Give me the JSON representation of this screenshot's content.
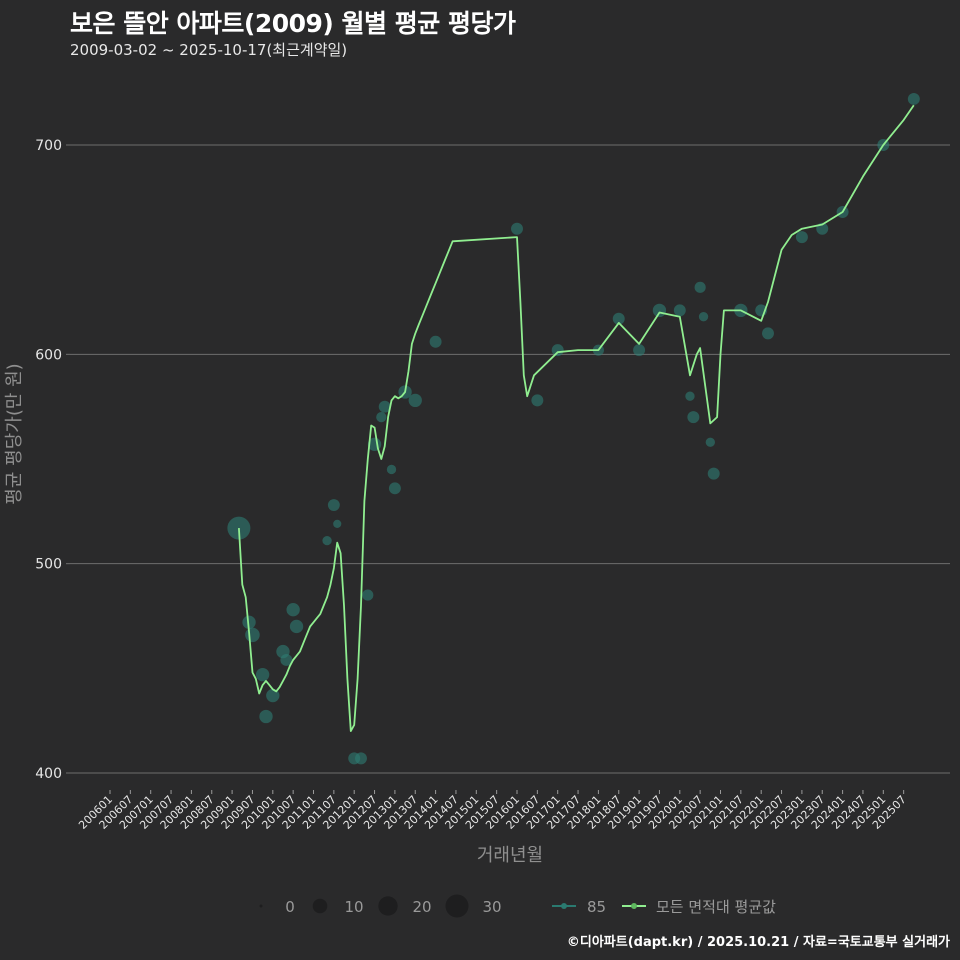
{
  "header": {
    "title": "보은 뜰안 아파트(2009) 월별 평균 평당가",
    "subtitle": "2009-03-02 ~ 2025-10-17(최근계약일)"
  },
  "caption": "©디아파트(dapt.kr) / 2025.10.21 / 자료=국토교통부 실거래가",
  "colors": {
    "background": "#2a2a2b",
    "gridline": "#6e6e6e",
    "avg_line": "#90ee90",
    "series_85": "#2a7a70",
    "points": "#2f7d73"
  },
  "chart_data": {
    "type": "line",
    "title": "보은 뜰안 아파트(2009) 월별 평균 평당가",
    "subtitle": "2009-03-02 ~ 2025-10-17(최근계약일)",
    "xlabel": "거래년월",
    "ylabel": "평균 평당가(만 원)",
    "ylim": [
      370,
      735
    ],
    "yticks": [
      400,
      500,
      600,
      700
    ],
    "grid": {
      "y_major": true,
      "x": false
    },
    "x_tick_labels": [
      "200601",
      "200607",
      "200701",
      "200707",
      "200801",
      "200807",
      "200901",
      "200907",
      "201001",
      "201007",
      "201101",
      "201107",
      "201201",
      "201207",
      "201301",
      "201307",
      "201401",
      "201407",
      "201501",
      "201507",
      "201601",
      "201607",
      "201701",
      "201707",
      "201801",
      "201807",
      "201901",
      "201907",
      "202001",
      "202007",
      "202101",
      "202107",
      "202201",
      "202207",
      "202301",
      "202307",
      "202401",
      "202407",
      "202501",
      "202507"
    ],
    "legend": {
      "position": "bottom",
      "size_title": "",
      "size_entries": [
        0,
        10,
        20,
        30
      ],
      "line_entries": [
        "85",
        "모든 면적대 평균값"
      ]
    },
    "series": [
      {
        "name": "모든 면적대 평균값",
        "type": "line",
        "x": [
          "200903",
          "200904",
          "200905",
          "200906",
          "200907",
          "200908",
          "200909",
          "200910",
          "200911",
          "200912",
          "201001",
          "201002",
          "201003",
          "201004",
          "201005",
          "201006",
          "201007",
          "201008",
          "201009",
          "201010",
          "201011",
          "201012",
          "201101",
          "201102",
          "201103",
          "201104",
          "201105",
          "201106",
          "201107",
          "201108",
          "201109",
          "201110",
          "201111",
          "201112",
          "201201",
          "201202",
          "201203",
          "201204",
          "201205",
          "201206",
          "201207",
          "201208",
          "201209",
          "201210",
          "201211",
          "201212",
          "201301",
          "201302",
          "201303",
          "201304",
          "201305",
          "201306",
          "201307",
          "201308",
          "201309",
          "201310",
          "201311",
          "201312",
          "201401",
          "201402",
          "201403",
          "201404",
          "201405",
          "201406",
          "201601",
          "201602",
          "201603",
          "201604",
          "201605",
          "201606",
          "201701",
          "201707",
          "201801",
          "201807",
          "201901",
          "201907",
          "202001",
          "202004",
          "202006",
          "202007",
          "202010",
          "202012",
          "202101",
          "202102",
          "202104",
          "202107",
          "202201",
          "202203",
          "202207",
          "202210",
          "202301",
          "202307",
          "202401",
          "202407",
          "202501",
          "202507",
          "202510"
        ],
        "values": [
          517,
          490,
          484,
          467,
          448,
          445,
          438,
          442,
          444,
          442,
          440,
          439,
          441,
          444,
          447,
          451,
          454,
          456,
          458,
          462,
          466,
          470,
          472,
          474,
          476,
          480,
          484,
          490,
          498,
          510,
          505,
          480,
          445,
          420,
          423,
          445,
          480,
          530,
          550,
          566,
          565,
          555,
          550,
          556,
          570,
          578,
          580,
          579,
          580,
          582,
          592,
          605,
          610,
          614,
          618,
          622,
          626,
          630,
          634,
          638,
          642,
          646,
          650,
          654,
          656,
          625,
          590,
          580,
          585,
          590,
          601,
          602,
          602,
          615,
          605,
          620,
          618,
          590,
          600,
          603,
          567,
          570,
          600,
          621,
          621,
          621,
          616,
          625,
          650,
          657,
          660,
          662,
          668,
          685,
          700,
          712,
          719
        ]
      },
      {
        "name": "85",
        "type": "scatter",
        "note": "point size = transaction count (0-30)",
        "points": [
          {
            "x": "200903",
            "y": 517,
            "n": 30
          },
          {
            "x": "200906",
            "y": 472,
            "n": 8
          },
          {
            "x": "200907",
            "y": 466,
            "n": 10
          },
          {
            "x": "200910",
            "y": 447,
            "n": 8
          },
          {
            "x": "200911",
            "y": 427,
            "n": 8
          },
          {
            "x": "201001",
            "y": 437,
            "n": 8
          },
          {
            "x": "201004",
            "y": 458,
            "n": 8
          },
          {
            "x": "201005",
            "y": 454,
            "n": 6
          },
          {
            "x": "201007",
            "y": 478,
            "n": 8
          },
          {
            "x": "201008",
            "y": 470,
            "n": 8
          },
          {
            "x": "201105",
            "y": 511,
            "n": 3
          },
          {
            "x": "201107",
            "y": 528,
            "n": 6
          },
          {
            "x": "201108",
            "y": 519,
            "n": 2
          },
          {
            "x": "201201",
            "y": 407,
            "n": 6
          },
          {
            "x": "201203",
            "y": 407,
            "n": 6
          },
          {
            "x": "201205",
            "y": 485,
            "n": 5
          },
          {
            "x": "201207",
            "y": 557,
            "n": 8
          },
          {
            "x": "201209",
            "y": 570,
            "n": 4
          },
          {
            "x": "201210",
            "y": 575,
            "n": 6
          },
          {
            "x": "201212",
            "y": 545,
            "n": 3
          },
          {
            "x": "201301",
            "y": 536,
            "n": 6
          },
          {
            "x": "201304",
            "y": 582,
            "n": 8
          },
          {
            "x": "201307",
            "y": 578,
            "n": 8
          },
          {
            "x": "201401",
            "y": 606,
            "n": 6
          },
          {
            "x": "201601",
            "y": 660,
            "n": 6
          },
          {
            "x": "201607",
            "y": 578,
            "n": 6
          },
          {
            "x": "201701",
            "y": 602,
            "n": 6
          },
          {
            "x": "201801",
            "y": 602,
            "n": 5
          },
          {
            "x": "201807",
            "y": 617,
            "n": 6
          },
          {
            "x": "201901",
            "y": 602,
            "n": 6
          },
          {
            "x": "201907",
            "y": 621,
            "n": 8
          },
          {
            "x": "202001",
            "y": 621,
            "n": 6
          },
          {
            "x": "202004",
            "y": 580,
            "n": 3
          },
          {
            "x": "202005",
            "y": 570,
            "n": 6
          },
          {
            "x": "202007",
            "y": 632,
            "n": 5
          },
          {
            "x": "202008",
            "y": 618,
            "n": 3
          },
          {
            "x": "202010",
            "y": 558,
            "n": 3
          },
          {
            "x": "202011",
            "y": 543,
            "n": 6
          },
          {
            "x": "202107",
            "y": 621,
            "n": 8
          },
          {
            "x": "202201",
            "y": 621,
            "n": 6
          },
          {
            "x": "202203",
            "y": 610,
            "n": 6
          },
          {
            "x": "202301",
            "y": 656,
            "n": 6
          },
          {
            "x": "202307",
            "y": 660,
            "n": 6
          },
          {
            "x": "202401",
            "y": 668,
            "n": 6
          },
          {
            "x": "202501",
            "y": 700,
            "n": 6
          },
          {
            "x": "202510",
            "y": 722,
            "n": 6
          }
        ]
      }
    ]
  }
}
